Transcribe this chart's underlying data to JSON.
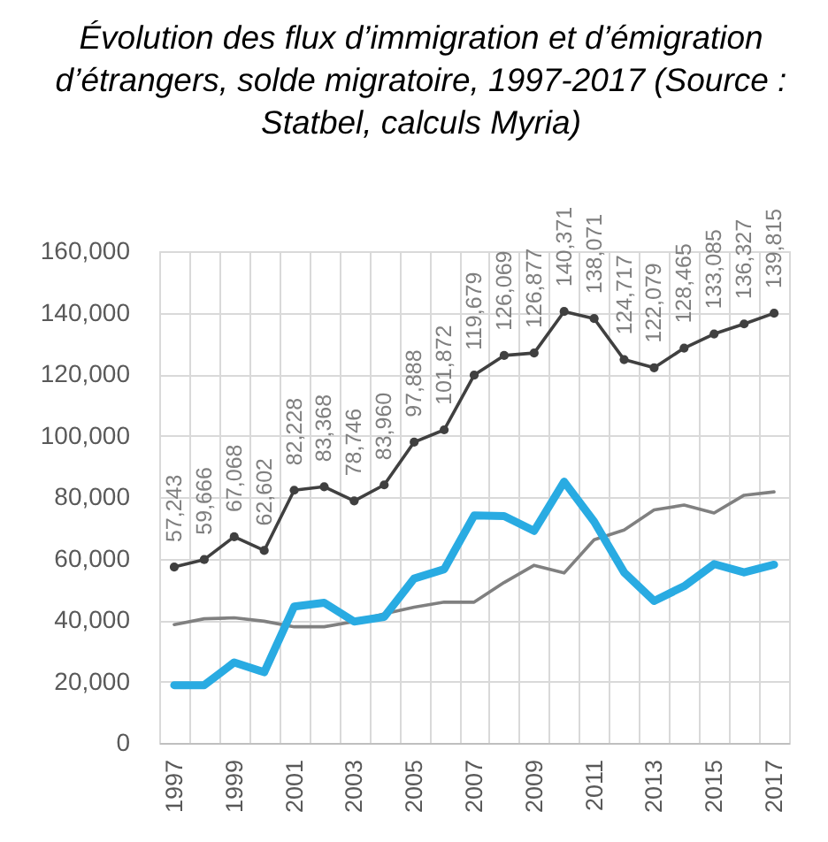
{
  "chart_data": {
    "type": "line",
    "title": "Évolution des flux d’immigration et d’émigration d’étrangers, solde migratoire, 1997-2017 (Source : Statbel, calculs Myria)",
    "categories": [
      "1997",
      null,
      "1999",
      null,
      "2001",
      null,
      "2003",
      null,
      "2005",
      null,
      "2007",
      null,
      "2009",
      null,
      "2011",
      null,
      "2013",
      null,
      "2015",
      null,
      "2017"
    ],
    "ylim": [
      0,
      160000
    ],
    "yticks": [
      {
        "value": 0,
        "label": "0"
      },
      {
        "value": 20000,
        "label": "20,000"
      },
      {
        "value": 40000,
        "label": "40,000"
      },
      {
        "value": 60000,
        "label": "60,000"
      },
      {
        "value": 80000,
        "label": "80,000"
      },
      {
        "value": 100000,
        "label": "100,000"
      },
      {
        "value": 120000,
        "label": "120,000"
      },
      {
        "value": 140000,
        "label": "140,000"
      },
      {
        "value": 160000,
        "label": "160,000"
      }
    ],
    "grid": true,
    "series": [
      {
        "color": "#404040",
        "marker": "circle",
        "values": [
          57243,
          59666,
          67068,
          62602,
          82228,
          83368,
          78746,
          83960,
          97888,
          101872,
          119679,
          126069,
          126877,
          140371,
          138071,
          124717,
          122079,
          128465,
          133085,
          136327,
          139815
        ],
        "value_labels": [
          "57,243",
          "59,666",
          "67,068",
          "62,602",
          "82,228",
          "83,368",
          "78,746",
          "83,960",
          "97,888",
          "101,872",
          "119,679",
          "126,069",
          "126,877",
          "140,371",
          "138,071",
          "124,717",
          "122,079",
          "128,465",
          "133,085",
          "136,327",
          "139,815"
        ]
      },
      {
        "color": "#808080",
        "marker": "none",
        "values": [
          38500,
          40400,
          40700,
          39600,
          37800,
          37800,
          39500,
          42000,
          44200,
          45800,
          45800,
          52200,
          57800,
          55300,
          66100,
          69300,
          75800,
          77400,
          74800,
          80600,
          81700
        ]
      },
      {
        "color": "#29abe2",
        "marker": "none",
        "values": [
          18800,
          18800,
          26200,
          23000,
          44400,
          45600,
          39500,
          41000,
          53500,
          56500,
          74000,
          73800,
          69000,
          85000,
          72000,
          55500,
          46200,
          51000,
          58200,
          55500,
          58000
        ]
      }
    ]
  }
}
